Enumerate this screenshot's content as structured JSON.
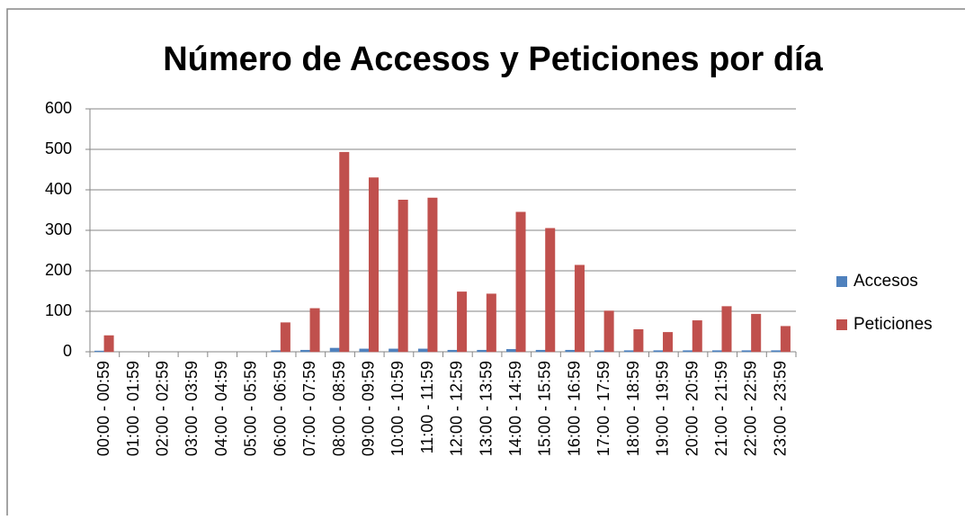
{
  "chart_data": {
    "type": "bar",
    "title": "Número de Accesos y Peticiones por día",
    "categories": [
      "00:00 - 00:59",
      "01:00 - 01:59",
      "02:00 - 02:59",
      "03:00 - 03:59",
      "04:00 - 04:59",
      "05:00 - 05:59",
      "06:00 - 06:59",
      "07:00 - 07:59",
      "08:00 - 08:59",
      "09:00 - 09:59",
      "10:00 - 10:59",
      "11:00 - 11:59",
      "12:00 - 12:59",
      "13:00 - 13:59",
      "14:00 - 14:59",
      "15:00 - 15:59",
      "16:00 - 16:59",
      "17:00 - 17:59",
      "18:00 - 18:59",
      "19:00 - 19:59",
      "20:00 - 20:59",
      "21:00 - 21:59",
      "22:00 - 22:59",
      "23:00 - 23:59"
    ],
    "series": [
      {
        "name": "Accesos",
        "color": "#4f81bd",
        "values": [
          2,
          0,
          0,
          0,
          0,
          0,
          3,
          4,
          9,
          7,
          7,
          7,
          4,
          4,
          6,
          4,
          4,
          3,
          3,
          3,
          3,
          3,
          3,
          3
        ]
      },
      {
        "name": "Peticiones",
        "color": "#c0504d",
        "values": [
          40,
          0,
          0,
          0,
          0,
          0,
          72,
          107,
          493,
          430,
          375,
          380,
          148,
          143,
          345,
          305,
          214,
          101,
          55,
          48,
          77,
          112,
          93,
          63
        ]
      }
    ],
    "ylim": [
      0,
      600
    ],
    "yticks": [
      0,
      100,
      200,
      300,
      400,
      500,
      600
    ],
    "grid": true,
    "legend": "right"
  }
}
